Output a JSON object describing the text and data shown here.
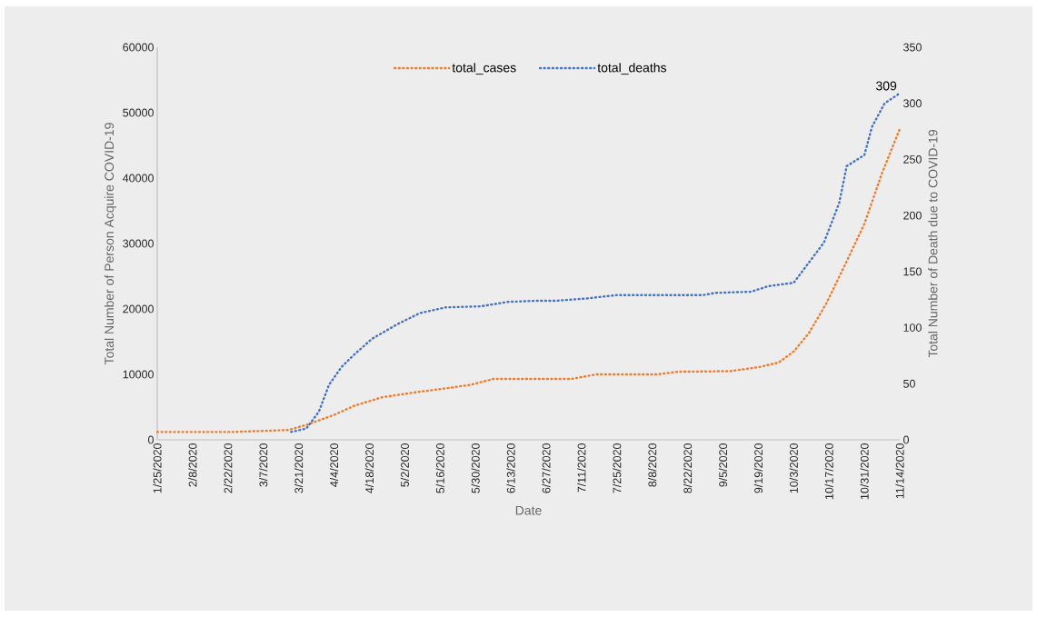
{
  "chart_data": {
    "type": "line",
    "xlabel": "Date",
    "ylabel": "Total Number of Person Acquire COVID-19",
    "y2label": "Total Number of Death due to COVID-19",
    "xlim": [
      "2020-01-25",
      "2020-11-14"
    ],
    "xticks": [
      {
        "value": "2020-01-25",
        "label": "1/25/2020"
      },
      {
        "value": "2020-02-08",
        "label": "2/8/2020"
      },
      {
        "value": "2020-02-22",
        "label": "2/22/2020"
      },
      {
        "value": "2020-03-07",
        "label": "3/7/2020"
      },
      {
        "value": "2020-03-21",
        "label": "3/21/2020"
      },
      {
        "value": "2020-04-04",
        "label": "4/4/2020"
      },
      {
        "value": "2020-04-18",
        "label": "4/18/2020"
      },
      {
        "value": "2020-05-02",
        "label": "5/2/2020"
      },
      {
        "value": "2020-05-16",
        "label": "5/16/2020"
      },
      {
        "value": "2020-05-30",
        "label": "5/30/2020"
      },
      {
        "value": "2020-06-13",
        "label": "6/13/2020"
      },
      {
        "value": "2020-06-27",
        "label": "6/27/2020"
      },
      {
        "value": "2020-07-11",
        "label": "7/11/2020"
      },
      {
        "value": "2020-07-25",
        "label": "7/25/2020"
      },
      {
        "value": "2020-08-08",
        "label": "8/8/2020"
      },
      {
        "value": "2020-08-22",
        "label": "8/22/2020"
      },
      {
        "value": "2020-09-05",
        "label": "9/5/2020"
      },
      {
        "value": "2020-09-19",
        "label": "9/19/2020"
      },
      {
        "value": "2020-10-03",
        "label": "10/3/2020"
      },
      {
        "value": "2020-10-17",
        "label": "10/17/2020"
      },
      {
        "value": "2020-10-31",
        "label": "10/31/2020"
      },
      {
        "value": "2020-11-14",
        "label": "11/14/2020"
      }
    ],
    "ylim": [
      0,
      60000
    ],
    "yticks": [
      0,
      10000,
      20000,
      30000,
      40000,
      50000,
      60000
    ],
    "y2lim": [
      0,
      350
    ],
    "y2ticks": [
      0,
      50,
      100,
      150,
      200,
      250,
      300,
      350
    ],
    "legend": "top",
    "line_style": "dotted",
    "series": [
      {
        "name": "total_cases",
        "color": "#ed7d31",
        "x": [
          "2020-01-25",
          "2020-02-24",
          "2020-03-17",
          "2020-03-25",
          "2020-04-04",
          "2020-04-12",
          "2020-04-23",
          "2020-05-07",
          "2020-05-19",
          "2020-05-28",
          "2020-06-06",
          "2020-07-07",
          "2020-07-17",
          "2020-08-10",
          "2020-08-18",
          "2020-09-08",
          "2020-09-19",
          "2020-09-27",
          "2020-10-03",
          "2020-10-09",
          "2020-10-16",
          "2020-10-23",
          "2020-10-31",
          "2020-11-07",
          "2020-11-14"
        ],
        "values": [
          1200,
          1200,
          1500,
          2400,
          3800,
          5200,
          6500,
          7300,
          7900,
          8400,
          9300,
          9300,
          10000,
          10000,
          10400,
          10500,
          11100,
          11800,
          13500,
          16300,
          20900,
          26500,
          33000,
          40800,
          47500
        ]
      },
      {
        "name": "total_deaths",
        "color": "#4472c4",
        "axis": "y2",
        "x": [
          "2020-03-18",
          "2020-03-24",
          "2020-03-29",
          "2020-04-02",
          "2020-04-07",
          "2020-04-12",
          "2020-04-19",
          "2020-04-29",
          "2020-05-08",
          "2020-05-18",
          "2020-06-01",
          "2020-06-12",
          "2020-06-24",
          "2020-07-01",
          "2020-07-13",
          "2020-07-25",
          "2020-08-28",
          "2020-09-02",
          "2020-09-16",
          "2020-09-23",
          "2020-10-03",
          "2020-10-08",
          "2020-10-15",
          "2020-10-21",
          "2020-10-24",
          "2020-10-31",
          "2020-11-03",
          "2020-11-08",
          "2020-11-14"
        ],
        "values": [
          7,
          10,
          25,
          49,
          65,
          76,
          90,
          103,
          113,
          118,
          119,
          123,
          124,
          124,
          126,
          129,
          129,
          131,
          132,
          137,
          140,
          155,
          176,
          211,
          244,
          254,
          279,
          300,
          309
        ],
        "value_labels": [
          null,
          null,
          null,
          null,
          null,
          null,
          null,
          null,
          null,
          null,
          null,
          null,
          null,
          null,
          null,
          null,
          null,
          null,
          null,
          null,
          null,
          null,
          null,
          null,
          null,
          null,
          null,
          null,
          "309"
        ]
      }
    ]
  }
}
